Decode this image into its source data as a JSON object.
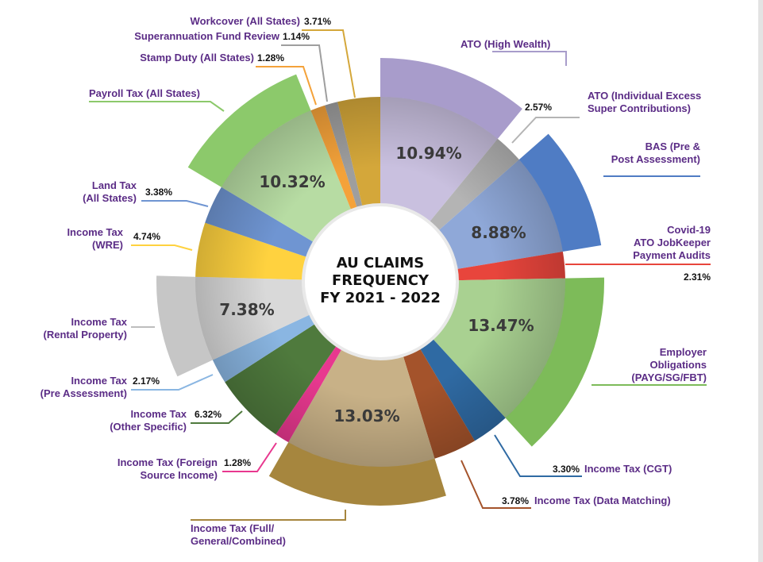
{
  "chart_data": {
    "type": "pie",
    "title": "AU CLAIMS FREQUENCY FY 2021 - 2022",
    "title_lines": [
      "AU CLAIMS",
      "FREQUENCY",
      "FY 2021 - 2022"
    ],
    "colors": {
      "label": "#5b2c86",
      "percent": "#111111"
    },
    "slices": [
      {
        "key": "ato-high-wealth",
        "label": [
          "ATO (High Wealth)"
        ],
        "value": 10.94,
        "pct": "10.94%",
        "color": "#c9c0df",
        "outer": "#a89ccb",
        "line": "#a89ccb",
        "callout": false,
        "inside": true
      },
      {
        "key": "ato-excess-super",
        "label": [
          "ATO (Individual Excess",
          "Super Contributions)"
        ],
        "value": 2.57,
        "pct": "2.57%",
        "color": "#b4b4b4",
        "outer": null,
        "line": "#b4b4b4",
        "callout": true,
        "inside": false
      },
      {
        "key": "bas",
        "label": [
          "BAS (Pre &",
          "Post Assessment)"
        ],
        "value": 8.88,
        "pct": "8.88%",
        "color": "#8fa8d8",
        "outer": "#4f7cc4",
        "line": "#4f7cc4",
        "callout": false,
        "inside": true
      },
      {
        "key": "jobkeeper",
        "label": [
          "Covid-19",
          "ATO JobKeeper",
          "Payment Audits"
        ],
        "value": 2.31,
        "pct": "2.31%",
        "color": "#e8453c",
        "outer": null,
        "line": "#e8453c",
        "callout": true,
        "inside": false
      },
      {
        "key": "employer-obligations",
        "label": [
          "Employer",
          "Obligations",
          "(PAYG/SG/FBT)"
        ],
        "value": 13.47,
        "pct": "13.47%",
        "color": "#a9d191",
        "outer": "#7dbb59",
        "line": "#7dbb59",
        "callout": false,
        "inside": true
      },
      {
        "key": "cgt",
        "label": [
          "Income Tax (CGT)"
        ],
        "value": 3.3,
        "pct": "3.30%",
        "color": "#2f6aa3",
        "outer": null,
        "line": "#2f6aa3",
        "callout": true,
        "inside": false
      },
      {
        "key": "data-matching",
        "label": [
          "Income Tax (Data Matching)"
        ],
        "value": 3.78,
        "pct": "3.78%",
        "color": "#a4532b",
        "outer": null,
        "line": "#a4532b",
        "callout": true,
        "inside": false
      },
      {
        "key": "full-general",
        "label": [
          "Income Tax (Full/",
          "General/Combined)"
        ],
        "value": 13.03,
        "pct": "13.03%",
        "color": "#c8b187",
        "outer": "#a6863e",
        "line": "#a6863e",
        "callout": false,
        "inside": true
      },
      {
        "key": "foreign-source",
        "label": [
          "Income Tax (Foreign",
          "Source Income)"
        ],
        "value": 1.28,
        "pct": "1.28%",
        "color": "#e8388f",
        "outer": null,
        "line": "#e8388f",
        "callout": true,
        "inside": false
      },
      {
        "key": "other-specific",
        "label": [
          "Income Tax",
          "(Other Specific)"
        ],
        "value": 6.32,
        "pct": "6.32%",
        "color": "#4f7a3d",
        "outer": null,
        "line": "#4f7a3d",
        "callout": true,
        "inside": false
      },
      {
        "key": "pre-assessment",
        "label": [
          "Income Tax",
          "(Pre Assessment)"
        ],
        "value": 2.17,
        "pct": "2.17%",
        "color": "#8ab6e2",
        "outer": null,
        "line": "#8ab6e2",
        "callout": true,
        "inside": false
      },
      {
        "key": "rental-property",
        "label": [
          "Income Tax",
          "(Rental Property)"
        ],
        "value": 7.38,
        "pct": "7.38%",
        "color": "#d9d9d9",
        "outer": "#c6c6c6",
        "line": "#bdbdbd",
        "callout": false,
        "inside": true
      },
      {
        "key": "wre",
        "label": [
          "Income Tax",
          "(WRE)"
        ],
        "value": 4.74,
        "pct": "4.74%",
        "color": "#ffd23f",
        "outer": null,
        "line": "#ffd23f",
        "callout": true,
        "inside": false
      },
      {
        "key": "land-tax",
        "label": [
          "Land Tax",
          "(All States)"
        ],
        "value": 3.38,
        "pct": "3.38%",
        "color": "#6f95d2",
        "outer": null,
        "line": "#6f95d2",
        "callout": true,
        "inside": false
      },
      {
        "key": "payroll-tax",
        "label": [
          "Payroll Tax (All States)"
        ],
        "value": 10.32,
        "pct": "10.32%",
        "color": "#b7dca3",
        "outer": "#8cc96b",
        "line": "#8cc96b",
        "callout": false,
        "inside": true
      },
      {
        "key": "stamp-duty",
        "label": [
          "Stamp Duty (All States)"
        ],
        "value": 1.28,
        "pct": "1.28%",
        "color": "#f4a23a",
        "outer": null,
        "line": "#f4a23a",
        "callout": true,
        "inside": false
      },
      {
        "key": "super-fund-review",
        "label": [
          "Superannuation Fund Review"
        ],
        "value": 1.14,
        "pct": "1.14%",
        "color": "#9e9e9e",
        "outer": null,
        "line": "#9e9e9e",
        "callout": true,
        "inside": false
      },
      {
        "key": "workcover",
        "label": [
          "Workcover (All States)"
        ],
        "value": 3.71,
        "pct": "3.71%",
        "color": "#d4a73a",
        "outer": null,
        "line": "#d4a73a",
        "callout": true,
        "inside": false
      }
    ]
  }
}
